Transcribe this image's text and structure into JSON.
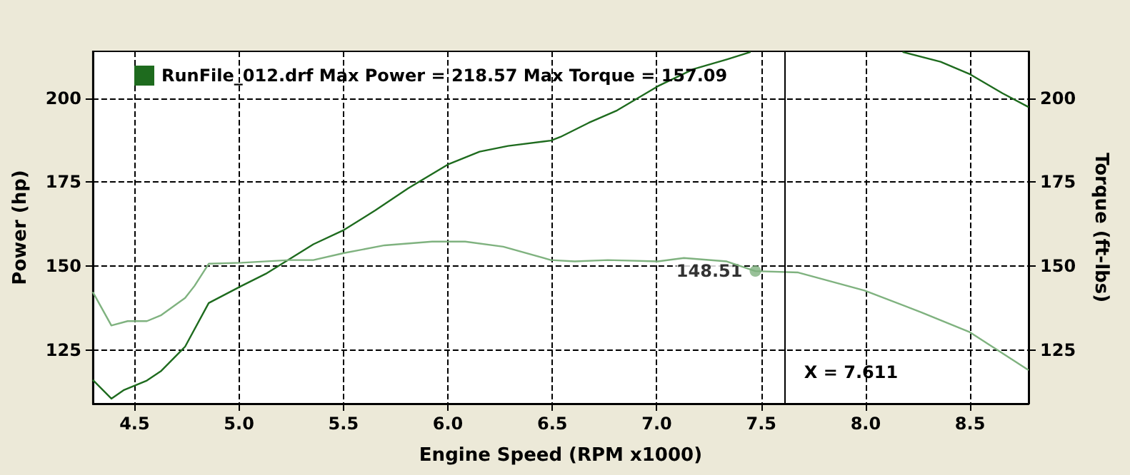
{
  "chart_data": {
    "type": "line",
    "xlabel": "Engine Speed (RPM x1000)",
    "ylabel": "Power (hp)",
    "y2label": "Torque (ft-lbs)",
    "series": [
      {
        "name": "RunFile_012.drf Max Power = 218.57 Max Torque = 157.09",
        "color": "#1e6b1e",
        "x": [
          4.3,
          4.389,
          4.447,
          4.559,
          4.628,
          4.742,
          4.855,
          5.012,
          5.128,
          5.242,
          5.356,
          5.503,
          5.652,
          5.81,
          6.004,
          6.152,
          6.288,
          6.493,
          6.539,
          6.674,
          6.81,
          7.005,
          7.176,
          7.335,
          7.449,
          7.8,
          8.177,
          8.359,
          8.496,
          8.655,
          8.78
        ],
        "values": [
          116.1,
          110.5,
          113,
          115.9,
          118.8,
          126,
          139,
          144.1,
          147.7,
          152.1,
          156.5,
          160.8,
          166.6,
          173.2,
          180.4,
          184.1,
          185.8,
          187.4,
          188.5,
          192.7,
          196.4,
          203.6,
          208.7,
          211.6,
          213.8,
          null,
          213.8,
          210.9,
          207.3,
          201.5,
          197.4
        ]
      },
      {
        "color": "#7fb27f",
        "axis": "y2",
        "x": [
          4.3,
          4.389,
          4.467,
          4.559,
          4.628,
          4.742,
          4.787,
          4.855,
          5.012,
          5.242,
          5.356,
          5.503,
          5.697,
          5.924,
          6.083,
          6.265,
          6.493,
          6.607,
          6.766,
          7.005,
          7.13,
          7.335,
          7.472,
          7.677,
          7.995,
          8.268,
          8.496,
          8.78
        ],
        "values": [
          142.3,
          132.3,
          133.6,
          133.6,
          135.4,
          140.5,
          144.1,
          150.7,
          151,
          151.8,
          151.8,
          153.9,
          156.2,
          157.3,
          157.3,
          155.8,
          151.8,
          151.4,
          151.8,
          151.4,
          152.4,
          151.4,
          148.5,
          148.1,
          142.7,
          136.2,
          130.4,
          119
        ]
      }
    ],
    "xlim": [
      4.3,
      8.78
    ],
    "xticks": [
      4.5,
      {
        "value": 5,
        "label": "5.0"
      },
      5.5,
      {
        "value": 6,
        "label": "6.0"
      },
      6.5,
      {
        "value": 7,
        "label": "7.0"
      },
      7.5,
      {
        "value": 8,
        "label": "8.0"
      },
      8.5
    ],
    "ylim": [
      109,
      214
    ],
    "yticks": [
      125,
      150,
      175,
      200
    ],
    "y2lim": [
      109,
      214
    ],
    "y2ticks": [
      125,
      150,
      175,
      200
    ],
    "annotations": [
      {
        "text": "148.51",
        "x": 7.472,
        "y": 148.51
      }
    ],
    "ref_lines": [
      {
        "axis": "x",
        "value": 7.611,
        "label": "X = 7.611",
        "color": "#000000"
      }
    ],
    "grid": true,
    "legend": "top left",
    "line_style": "solid",
    "marker": "none"
  }
}
